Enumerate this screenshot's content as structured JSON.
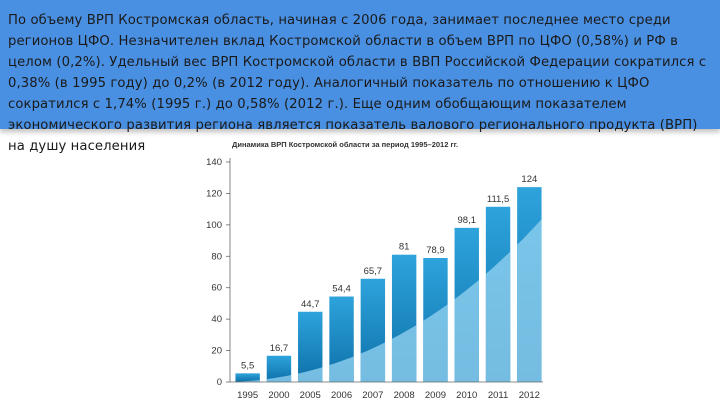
{
  "banner": {
    "text": "По объему ВРП Костромская область, начиная с 2006 года, занимает последнее место среди регионов ЦФО. Незначителен вклад Костромской области в объем ВРП по ЦФО (0,58%) и РФ в целом (0,2%). Удельный вес ВРП Костромской области в ВВП Российской Федерации сократился с 0,38% (в 1995 году) до 0,2% (в 2012 году). Аналогичный показатель по отношению к ЦФО сократился с 1,74% (1995 г.) до 0,58% (2012 г.). Еще одним обобщающим показателем экономического развития региона является показатель валового регионального продукта (ВРП) на душу населения"
  },
  "chart_data": {
    "type": "bar",
    "title": "Динамика ВРП Костромской области за период 1995–2012 гг.",
    "categories": [
      "1995",
      "2000",
      "2005",
      "2006",
      "2007",
      "2008",
      "2009",
      "2010",
      "2011",
      "2012"
    ],
    "values": [
      5.5,
      16.7,
      44.7,
      54.4,
      65.7,
      81,
      78.9,
      98.1,
      111.5,
      124
    ],
    "value_labels": [
      "5,5",
      "16,7",
      "44,7",
      "54,4",
      "65,7",
      "81",
      "78,9",
      "98,1",
      "111,5",
      "124"
    ],
    "ylim": [
      0,
      140
    ],
    "yticks": [
      0,
      20,
      40,
      60,
      80,
      100,
      120,
      140
    ],
    "xlabel": "",
    "ylabel": "",
    "grid": false,
    "colors": {
      "bar_top": "#2ea3dc",
      "bar_bottom": "#0d6fa8",
      "swoosh": "#8fd0ef"
    }
  }
}
